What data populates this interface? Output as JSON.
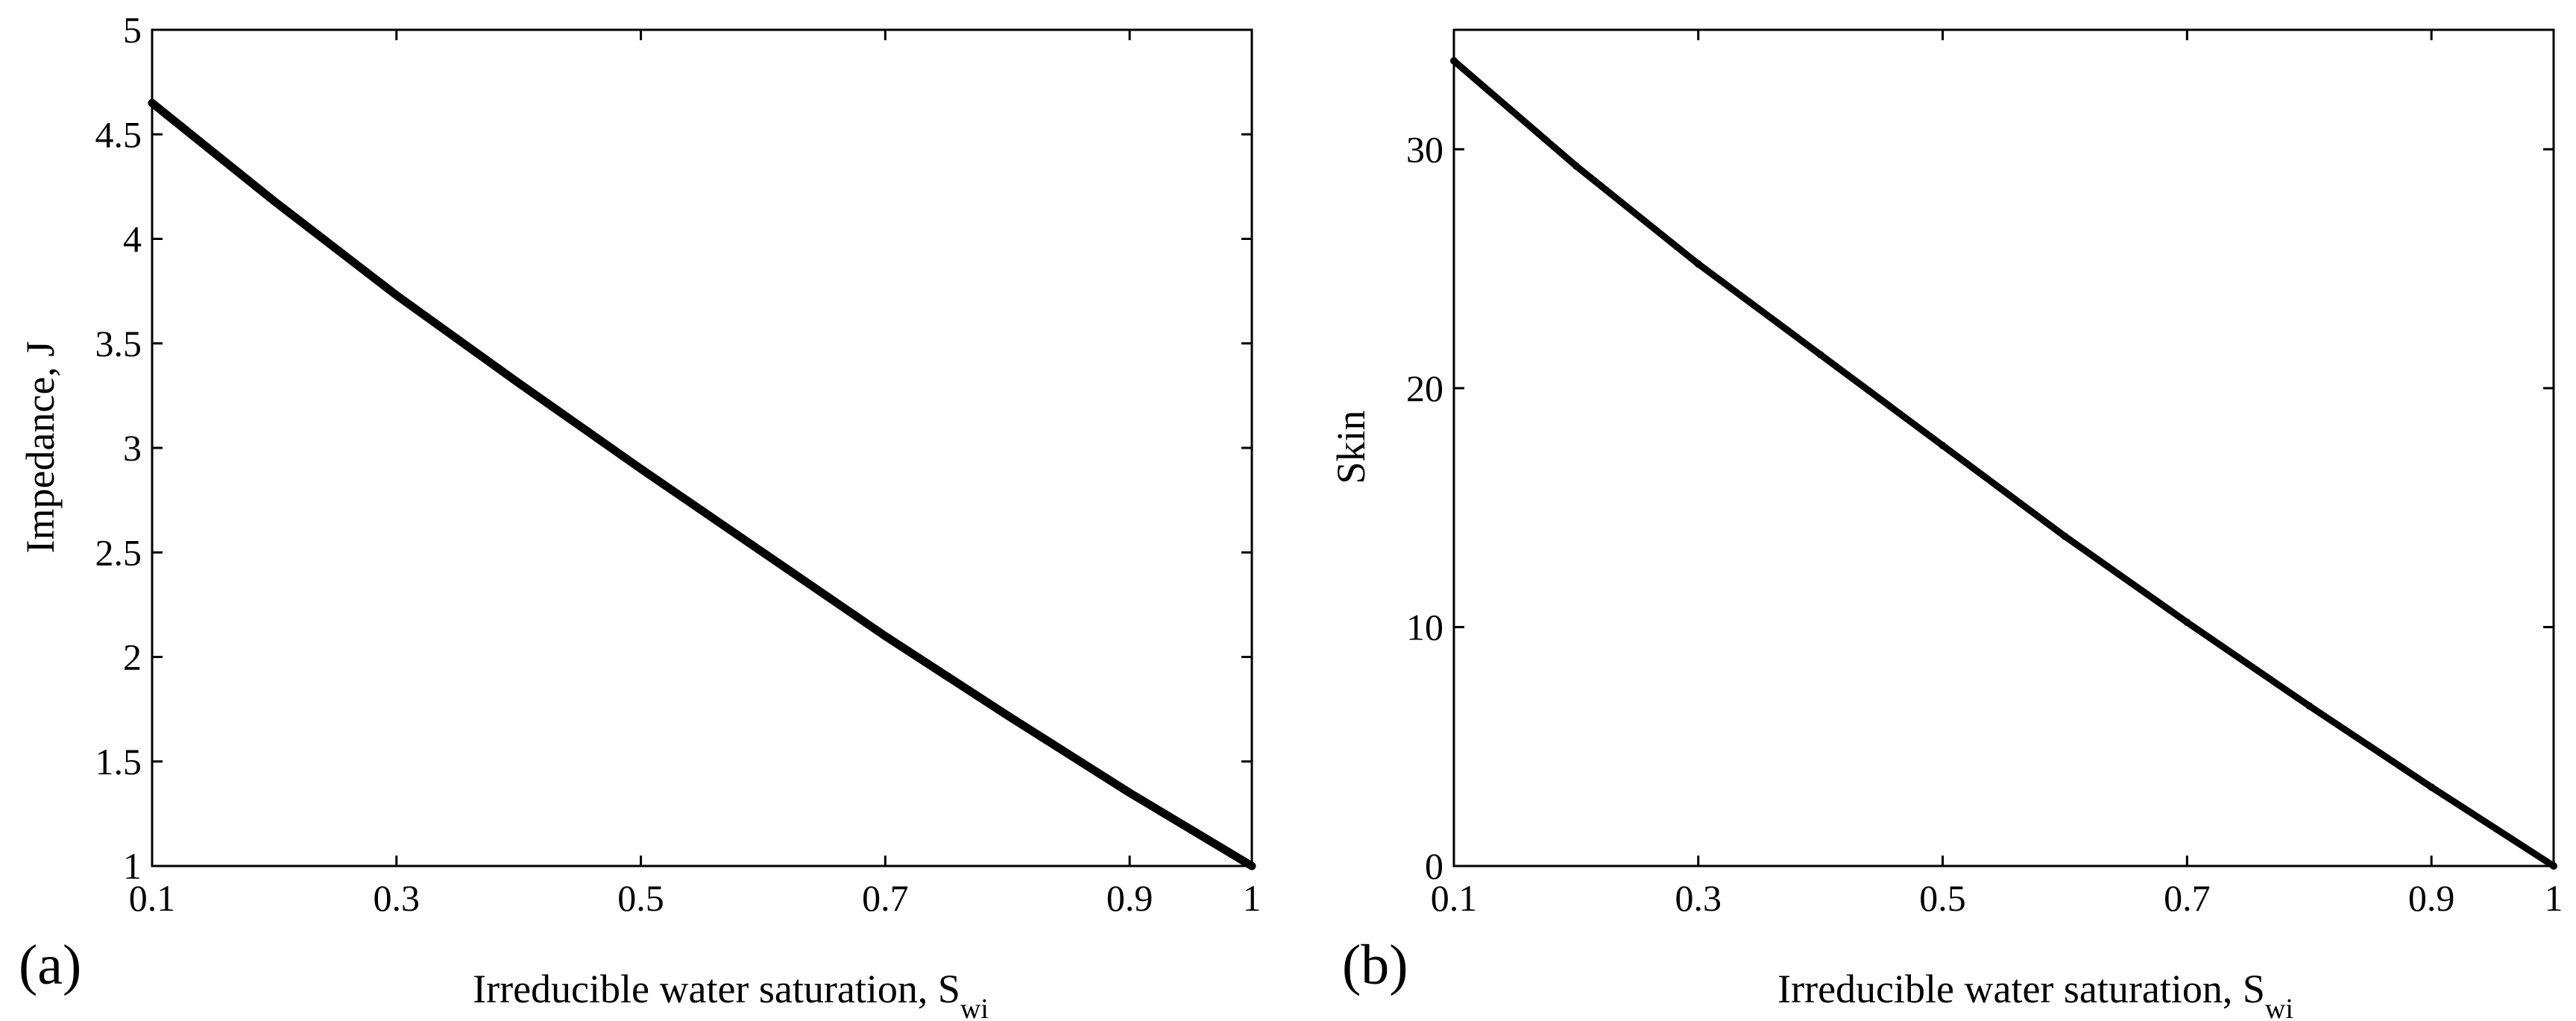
{
  "chart_data": [
    {
      "type": "line",
      "panel_label": "(a)",
      "title": "",
      "xlabel": "Irreducible water saturation, S",
      "xlabel_sub": "wi",
      "ylabel": "Impedance, J",
      "xlim": [
        0.1,
        1
      ],
      "ylim": [
        1,
        5
      ],
      "xticks": [
        0.1,
        0.3,
        0.5,
        0.7,
        0.9,
        1
      ],
      "xtick_labels": [
        "0.1",
        "0.3",
        "0.5",
        "0.7",
        "0.9",
        "1"
      ],
      "yticks": [
        1,
        1.5,
        2,
        2.5,
        3,
        3.5,
        4,
        4.5,
        5
      ],
      "ytick_labels": [
        "1",
        "1.5",
        "2",
        "2.5",
        "3",
        "3.5",
        "4",
        "4.5",
        "5"
      ],
      "grid": false,
      "series": [
        {
          "x": [
            0.1,
            0.2,
            0.3,
            0.4,
            0.5,
            0.6,
            0.7,
            0.8,
            0.9,
            1.0
          ],
          "y": [
            4.65,
            4.18,
            3.73,
            3.31,
            2.9,
            2.5,
            2.1,
            1.72,
            1.35,
            1.0
          ]
        }
      ]
    },
    {
      "type": "line",
      "panel_label": "(b)",
      "title": "",
      "xlabel": "Irreducible water saturation, S",
      "xlabel_sub": "wi",
      "ylabel": "Skin",
      "xlim": [
        0.1,
        1
      ],
      "ylim": [
        0,
        35
      ],
      "xticks": [
        0.1,
        0.3,
        0.5,
        0.7,
        0.9,
        1
      ],
      "xtick_labels": [
        "0.1",
        "0.3",
        "0.5",
        "0.7",
        "0.9",
        "1"
      ],
      "yticks": [
        0,
        10,
        20,
        30
      ],
      "ytick_labels": [
        "0",
        "10",
        "20",
        "30"
      ],
      "grid": false,
      "series": [
        {
          "x": [
            0.1,
            0.2,
            0.3,
            0.4,
            0.5,
            0.6,
            0.7,
            0.8,
            0.9,
            1.0
          ],
          "y": [
            33.7,
            29.3,
            25.2,
            21.4,
            17.6,
            13.8,
            10.2,
            6.7,
            3.3,
            0.0
          ]
        }
      ]
    }
  ]
}
